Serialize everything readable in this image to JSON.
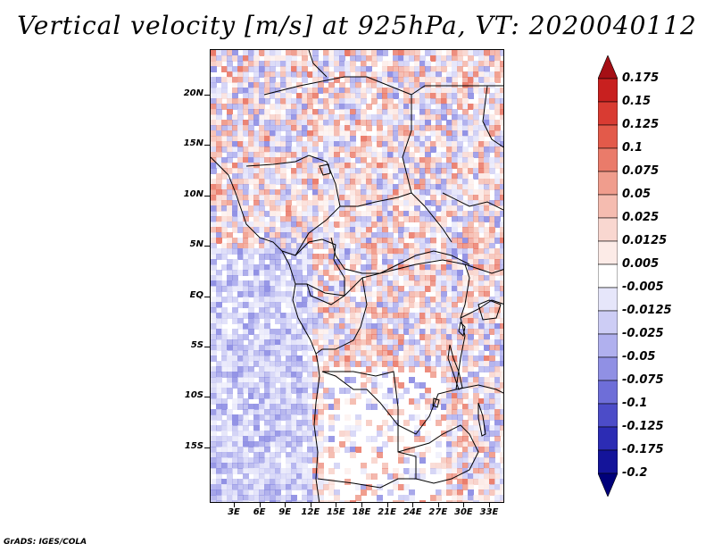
{
  "title": "Vertical velocity [m/s] at 925hPa, VT: 2020040112",
  "footer": "GrADS: IGES/COLA",
  "map": {
    "lat_range": [
      -20.5,
      24.5
    ],
    "lon_range": [
      -0.5,
      29.5
    ],
    "lat_ticks": [
      "20N",
      "15N",
      "10N",
      "5N",
      "EQ",
      "5S",
      "10S",
      "15S"
    ],
    "lon_ticks": [
      "3E",
      "6E",
      "9E",
      "12E",
      "15E",
      "18E",
      "21E",
      "24E",
      "27E",
      "30E",
      "33E"
    ],
    "field": "vertical velocity at 925hPa",
    "units": "m/s"
  },
  "colorbar": {
    "labels": [
      "0.175",
      "0.15",
      "0.125",
      "0.1",
      "0.075",
      "0.05",
      "0.025",
      "0.0125",
      "0.005",
      "-0.005",
      "-0.0125",
      "-0.025",
      "-0.05",
      "-0.075",
      "-0.1",
      "-0.125",
      "-0.175",
      "-0.2"
    ],
    "colors": [
      "#a50f15",
      "#c8201f",
      "#d93b32",
      "#e35a4a",
      "#ea7b6a",
      "#f09d8d",
      "#f5bcb0",
      "#f9d7d0",
      "#fcebe7",
      "#ffffff",
      "#e6e6fa",
      "#cdcdf5",
      "#b0b0ee",
      "#9090e4",
      "#6e6ed8",
      "#4c4cc8",
      "#2c2cb4",
      "#14149a",
      "#00007a"
    ]
  }
}
